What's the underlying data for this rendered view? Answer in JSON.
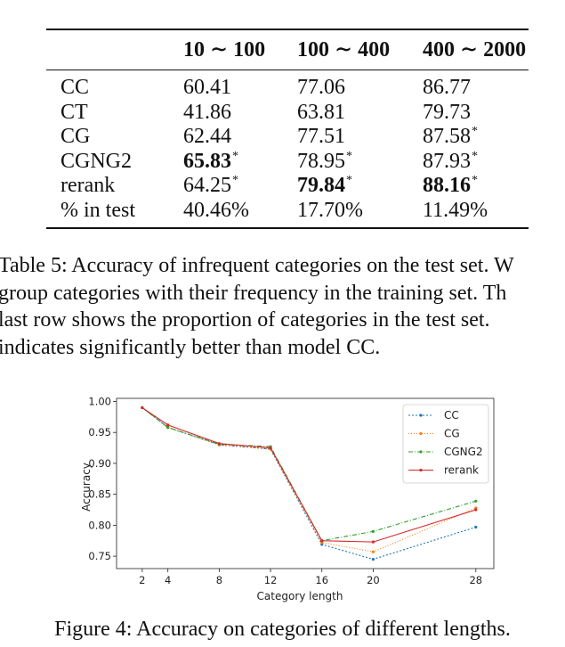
{
  "table": {
    "headers": [
      "",
      "10 ∼ 100",
      "100 ∼ 400",
      "400 ∼ 2000"
    ],
    "rows": [
      {
        "label": "CC",
        "cells": [
          {
            "v": "60.41",
            "b": false,
            "s": false
          },
          {
            "v": "77.06",
            "b": false,
            "s": false
          },
          {
            "v": "86.77",
            "b": false,
            "s": false
          }
        ]
      },
      {
        "label": "CT",
        "cells": [
          {
            "v": "41.86",
            "b": false,
            "s": false
          },
          {
            "v": "63.81",
            "b": false,
            "s": false
          },
          {
            "v": "79.73",
            "b": false,
            "s": false
          }
        ]
      },
      {
        "label": "CG",
        "cells": [
          {
            "v": "62.44",
            "b": false,
            "s": false
          },
          {
            "v": "77.51",
            "b": false,
            "s": false
          },
          {
            "v": "87.58",
            "b": false,
            "s": true
          }
        ]
      },
      {
        "label": "CGNG2",
        "cells": [
          {
            "v": "65.83",
            "b": true,
            "s": true
          },
          {
            "v": "78.95",
            "b": false,
            "s": true
          },
          {
            "v": "87.93",
            "b": false,
            "s": true
          }
        ]
      },
      {
        "label": "rerank",
        "cells": [
          {
            "v": "64.25",
            "b": false,
            "s": true
          },
          {
            "v": "79.84",
            "b": true,
            "s": true
          },
          {
            "v": "88.16",
            "b": true,
            "s": true
          }
        ]
      },
      {
        "label": "% in test",
        "cells": [
          {
            "v": "40.46%",
            "b": false,
            "s": false
          },
          {
            "v": "17.70%",
            "b": false,
            "s": false
          },
          {
            "v": "11.49%",
            "b": false,
            "s": false
          }
        ]
      }
    ],
    "star": "*"
  },
  "table_caption": [
    "Table 5: Accuracy of infrequent categories on the test set. W",
    "group categories with their frequency in the training set. Th",
    "last row shows the proportion of categories in the test set.",
    "indicates significantly better than model CC."
  ],
  "chart_data": {
    "type": "line",
    "x": [
      2,
      4,
      8,
      12,
      16,
      20,
      28
    ],
    "xticks": [
      "2",
      "4",
      "8",
      "12",
      "16",
      "20",
      "28"
    ],
    "yticks": [
      "0.75",
      "0.80",
      "0.85",
      "0.90",
      "0.95",
      "1.00"
    ],
    "ylim": [
      0.73,
      1.005
    ],
    "xlim": [
      0,
      29.4
    ],
    "xlabel": "Category length",
    "ylabel": "Accuracy",
    "legend_position": "upper right",
    "series": [
      {
        "name": "CC",
        "color": "#1f77b4",
        "dash": "2,2",
        "values": [
          0.99,
          0.958,
          0.93,
          0.923,
          0.769,
          0.745,
          0.797
        ]
      },
      {
        "name": "CG",
        "color": "#ff7f0e",
        "dash": "1,2",
        "values": [
          0.99,
          0.958,
          0.93,
          0.923,
          0.772,
          0.757,
          0.828
        ]
      },
      {
        "name": "CGNG2",
        "color": "#2ca02c",
        "dash": "5,2,1,2",
        "values": [
          0.99,
          0.958,
          0.931,
          0.927,
          0.775,
          0.79,
          0.839
        ]
      },
      {
        "name": "rerank",
        "color": "#d62728",
        "dash": "",
        "values": [
          0.99,
          0.962,
          0.932,
          0.925,
          0.775,
          0.773,
          0.825
        ]
      }
    ]
  },
  "figure_caption": "Figure 4: Accuracy on categories of different lengths."
}
